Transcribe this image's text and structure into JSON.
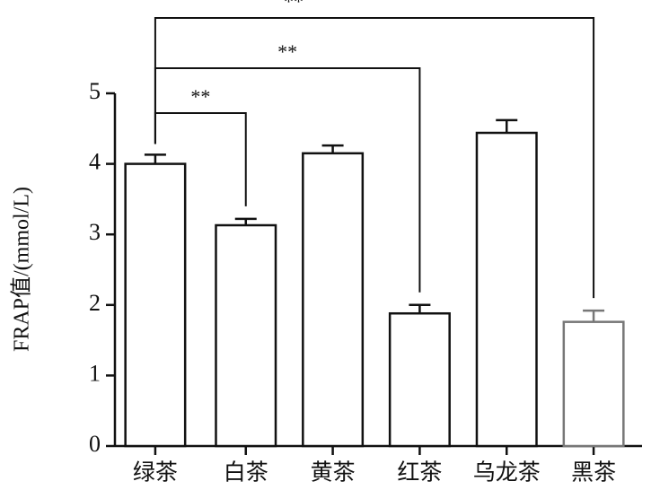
{
  "chart_data": {
    "type": "bar",
    "y_label": "FRAP值/(mmol/L)",
    "categories": [
      "绿茶",
      "白茶",
      "黄茶",
      "红茶",
      "乌龙茶",
      "黑茶"
    ],
    "values": [
      4.0,
      3.13,
      4.15,
      1.88,
      4.44,
      1.76
    ],
    "errors": [
      0.13,
      0.09,
      0.11,
      0.12,
      0.18,
      0.16
    ],
    "color": "#111111",
    "edge_colors": [
      "#111111",
      "#111111",
      "#111111",
      "#111111",
      "#111111",
      "#777777"
    ],
    "ylim": [
      0,
      5
    ],
    "yticks": [
      0,
      1,
      2,
      3,
      4,
      5
    ],
    "significance": [
      {
        "from": 0,
        "to": 1,
        "label": "**"
      },
      {
        "from": 0,
        "to": 3,
        "label": "**"
      },
      {
        "from": 0,
        "to": 5,
        "label": "**"
      }
    ]
  }
}
